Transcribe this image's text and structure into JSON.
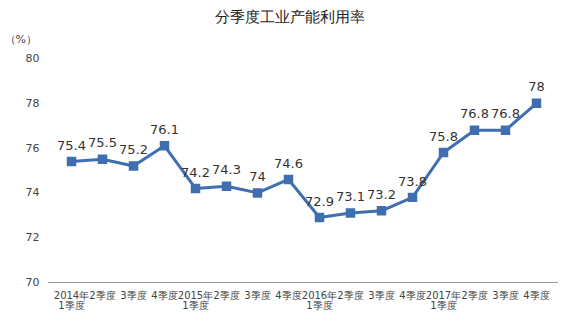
{
  "chart_data": {
    "type": "line",
    "title": "分季度工业产能利用率",
    "y_label": "（%）",
    "categories": [
      "2014年\n1季度",
      "2季度",
      "3季度",
      "4季度",
      "2015年\n1季度",
      "2季度",
      "3季度",
      "4季度",
      "2016年\n1季度",
      "2季度",
      "3季度",
      "4季度",
      "2017年\n1季度",
      "2季度",
      "3季度",
      "4季度"
    ],
    "values": [
      75.4,
      75.5,
      75.2,
      76.1,
      74.2,
      74.3,
      74.0,
      74.6,
      72.9,
      73.1,
      73.2,
      73.8,
      75.8,
      76.8,
      76.8,
      78.0
    ],
    "color": "#3f6fb0",
    "marker": "square",
    "data_labels": true,
    "grid": false,
    "ylim": [
      70,
      80
    ],
    "yticks": [
      70,
      72,
      74,
      76,
      78,
      80
    ]
  }
}
